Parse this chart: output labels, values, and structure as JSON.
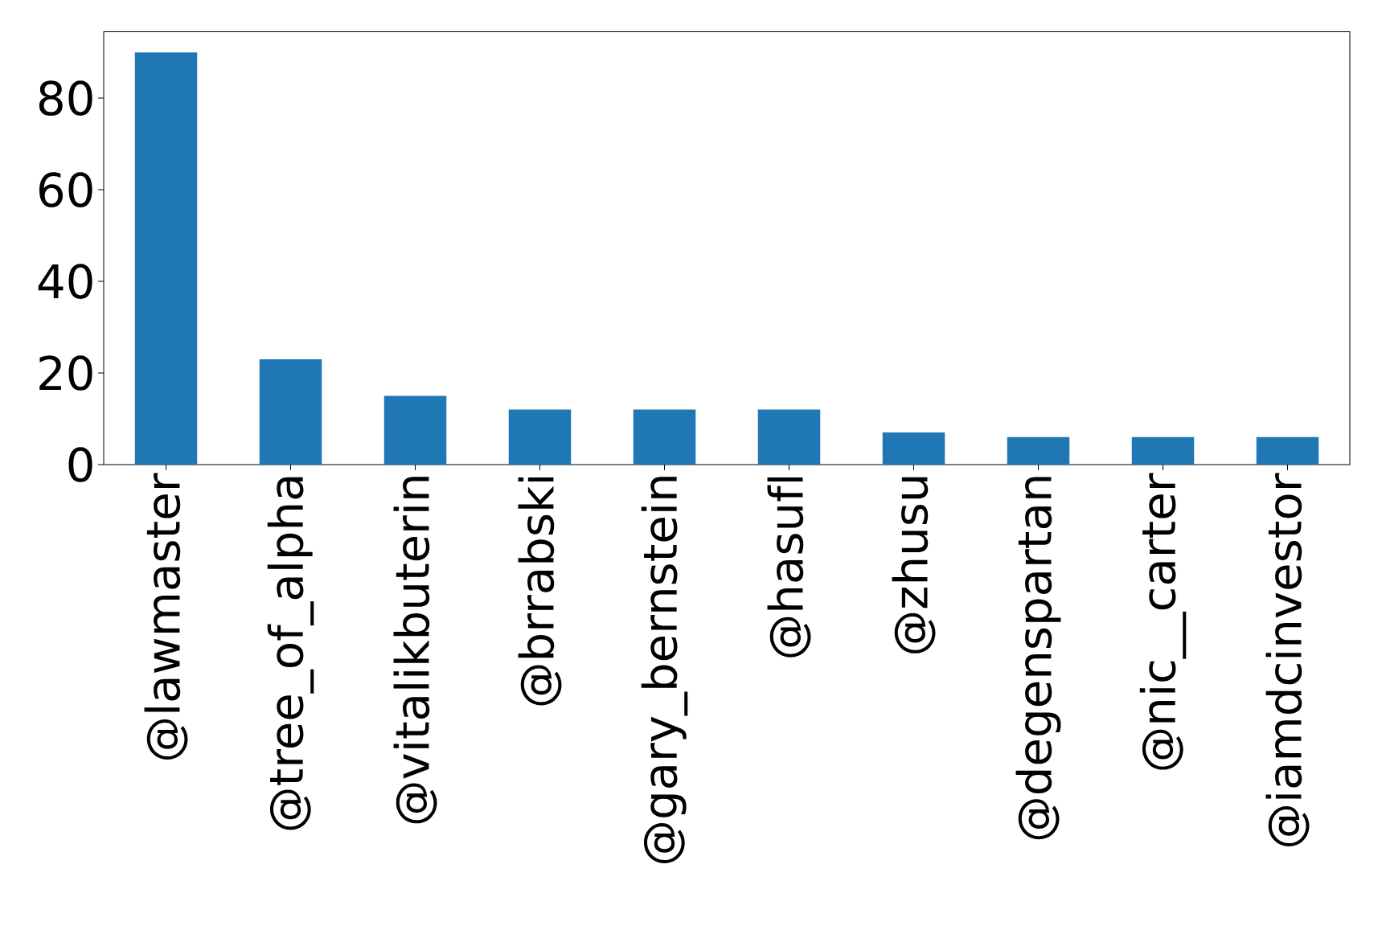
{
  "chart_data": {
    "type": "bar",
    "categories": [
      "@lawmaster",
      "@tree_of_alpha",
      "@vitalikbuterin",
      "@brrabski",
      "@gary_bernstein",
      "@hasufl",
      "@zhusu",
      "@degenspartan",
      "@nic__carter",
      "@iamdcinvestor"
    ],
    "values": [
      90,
      23,
      15,
      12,
      12,
      12,
      7,
      6,
      6,
      6
    ],
    "color": "#1f77b4",
    "ylim": [
      0,
      94.5
    ],
    "yticks": [
      0,
      20,
      40,
      60,
      80
    ]
  }
}
